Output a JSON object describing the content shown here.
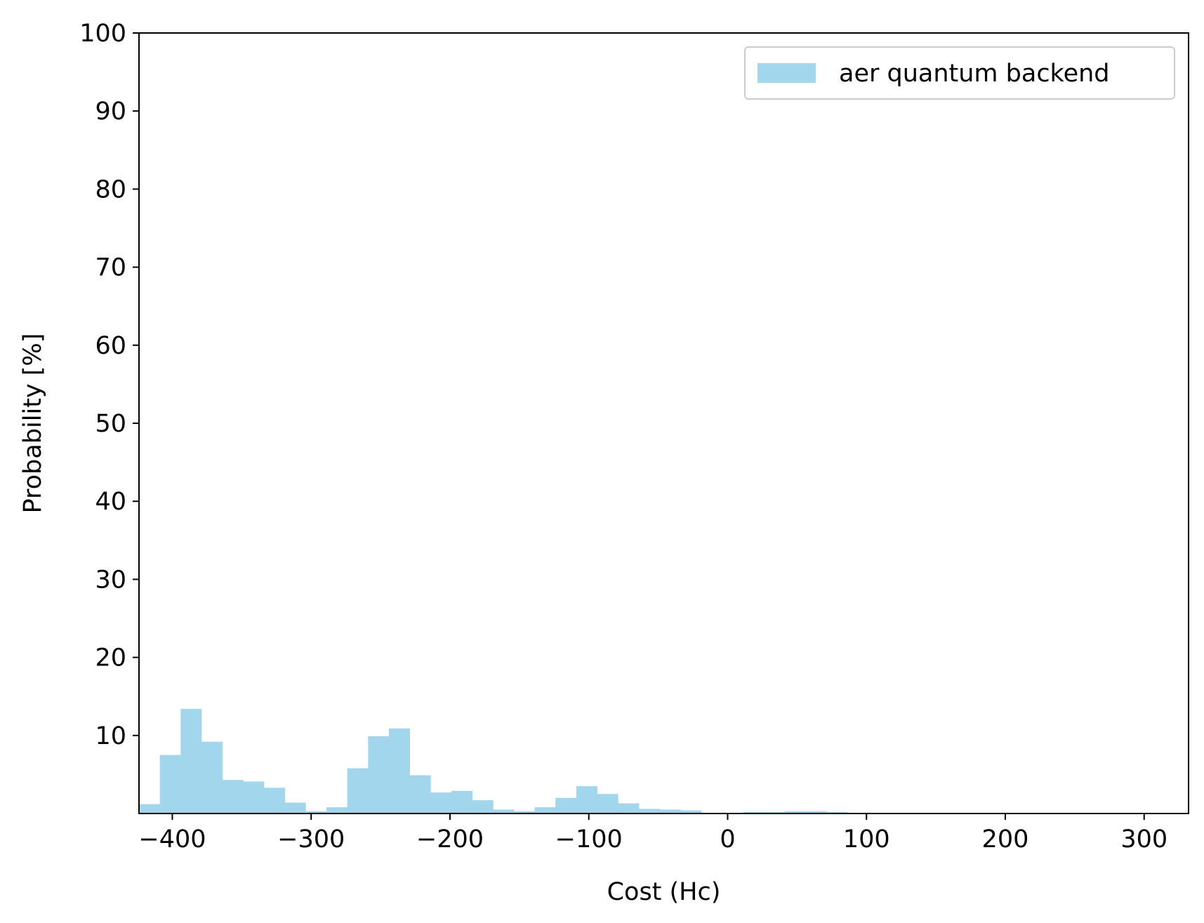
{
  "chart_data": {
    "type": "bar",
    "subtype": "histogram",
    "title": "",
    "xlabel": "Cost (Hc)",
    "ylabel": "Probability [%]",
    "xlim": [
      -424,
      332
    ],
    "ylim": [
      0,
      100
    ],
    "grid": false,
    "legend_position": "top-right",
    "xticks": [
      -400,
      -300,
      -200,
      -100,
      0,
      100,
      200,
      300
    ],
    "xtick_labels": [
      "−400",
      "−300",
      "−200",
      "−100",
      "0",
      "100",
      "200",
      "300"
    ],
    "yticks": [
      10,
      20,
      30,
      40,
      50,
      60,
      70,
      80,
      90,
      100
    ],
    "ytick_labels": [
      "10",
      "20",
      "30",
      "40",
      "50",
      "60",
      "70",
      "80",
      "90",
      "100"
    ],
    "bin_width": 15,
    "bin_start": -424,
    "series": [
      {
        "name": "aer quantum backend",
        "color": "#a1d6ec",
        "values": [
          1.2,
          7.5,
          13.4,
          9.2,
          4.3,
          4.1,
          3.3,
          1.4,
          0.3,
          0.8,
          5.8,
          9.9,
          10.9,
          4.9,
          2.7,
          2.9,
          1.7,
          0.5,
          0.3,
          0.8,
          2.0,
          3.5,
          2.5,
          1.3,
          0.6,
          0.5,
          0.4,
          0.1,
          0.1,
          0.2,
          0.2,
          0.3,
          0.3,
          0.2
        ]
      }
    ]
  }
}
